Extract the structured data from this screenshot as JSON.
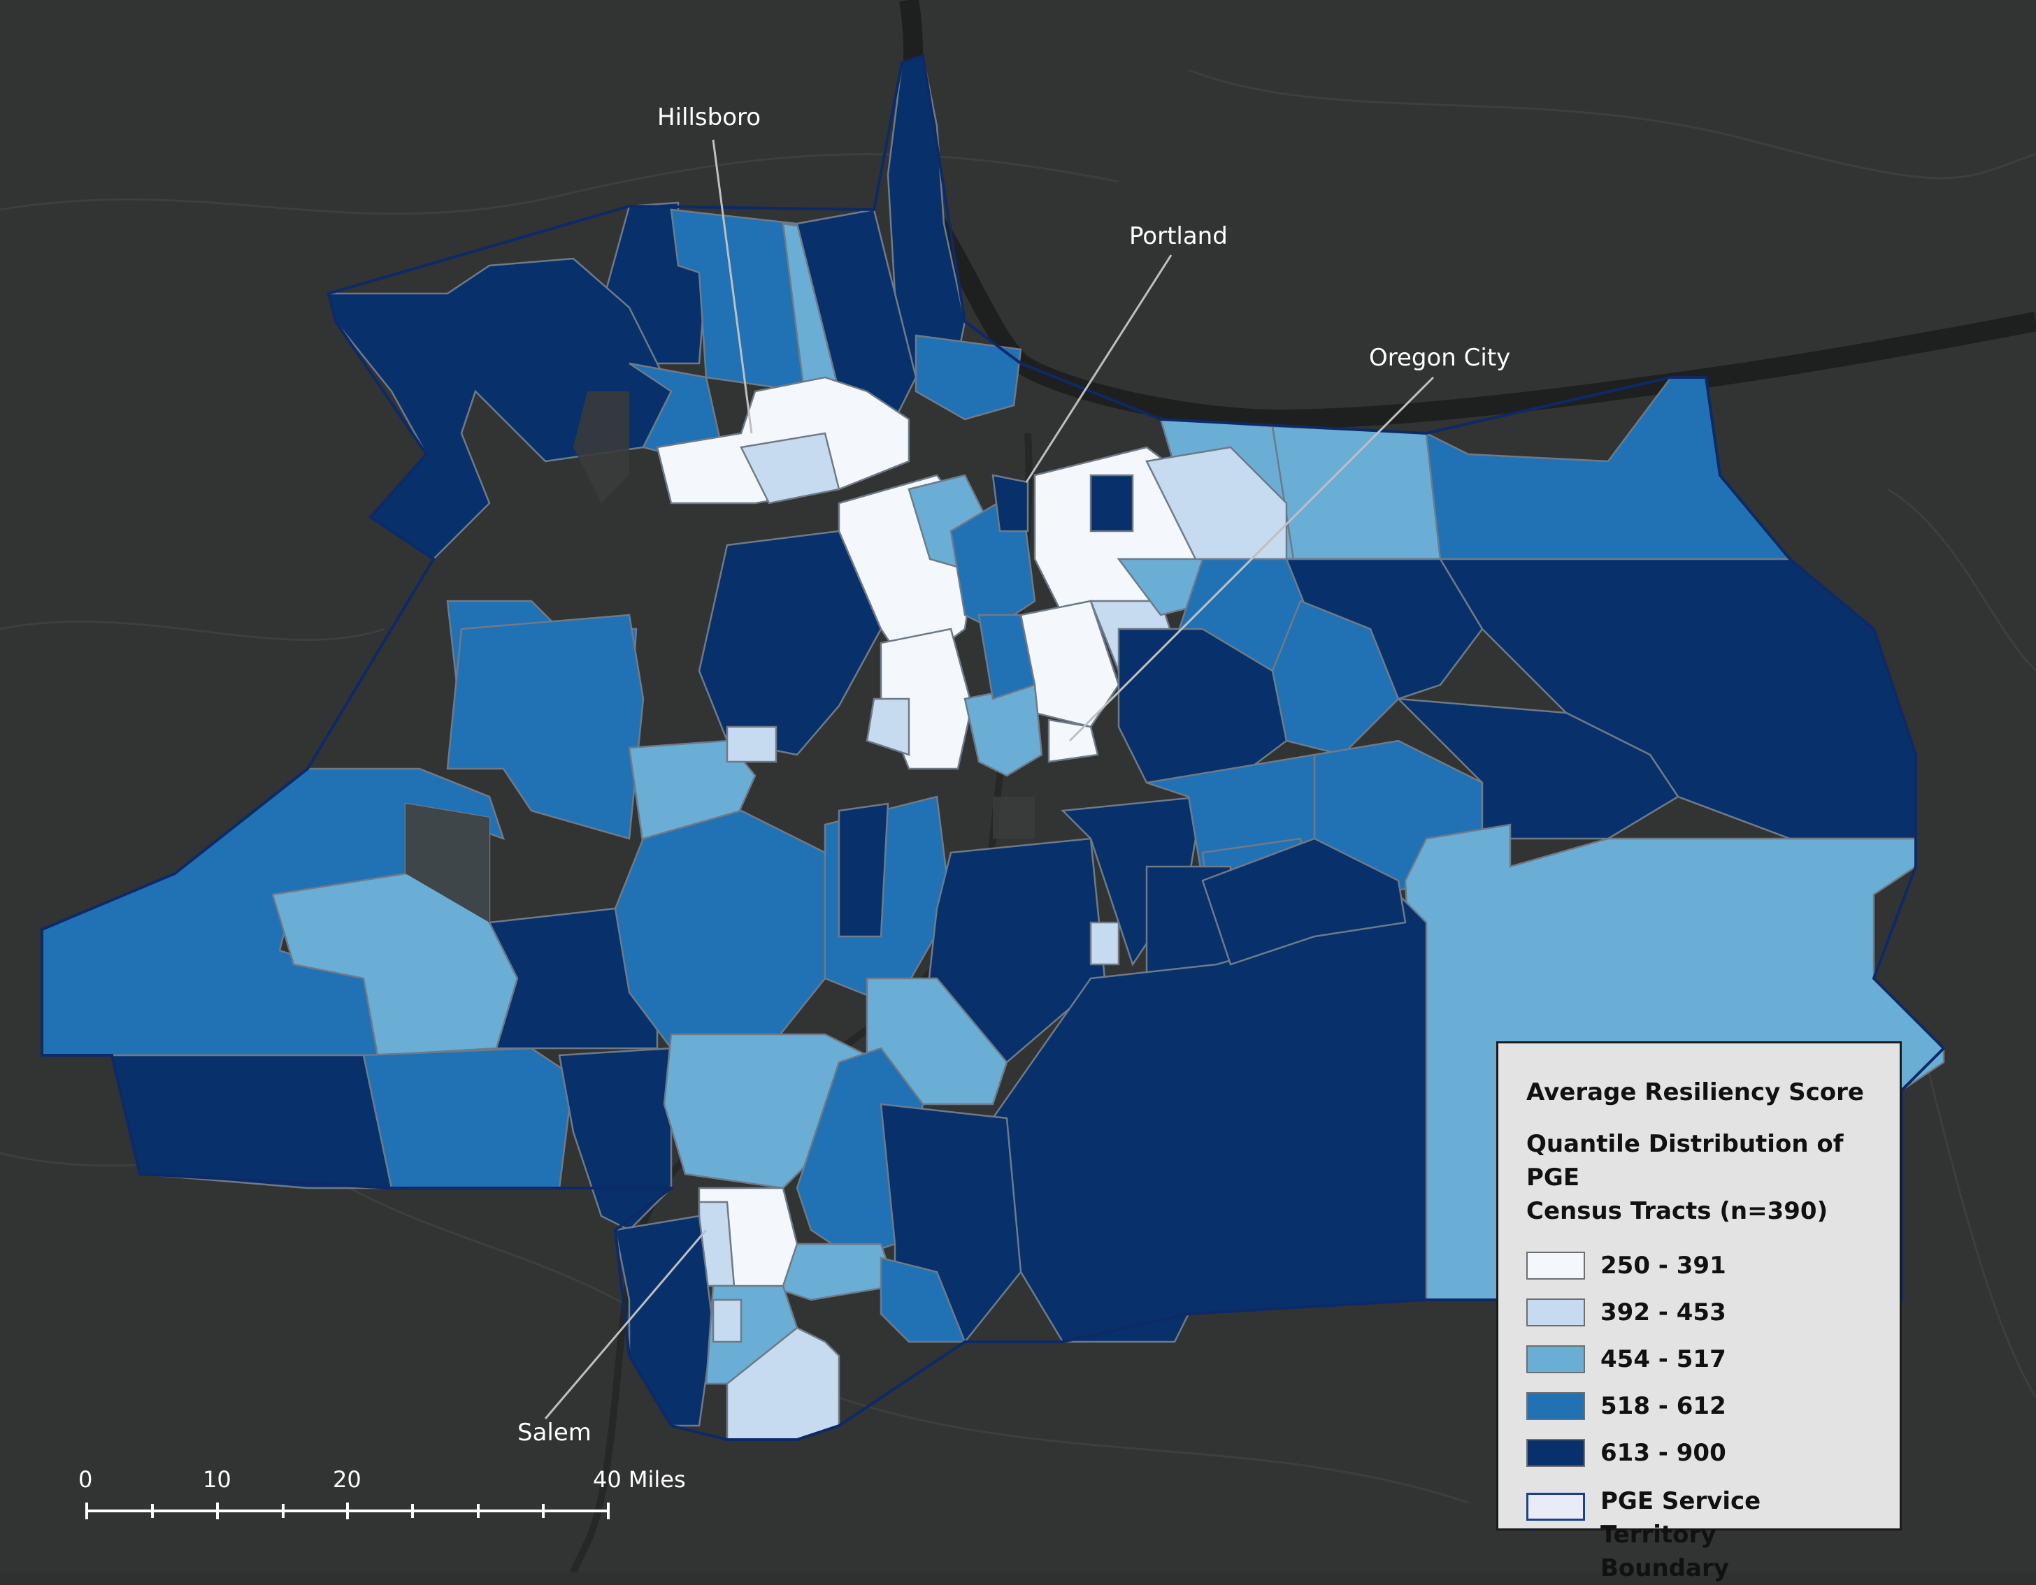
{
  "cities": [
    {
      "name": "Hillsboro"
    },
    {
      "name": "Portland"
    },
    {
      "name": "Oregon City"
    },
    {
      "name": "Salem"
    }
  ],
  "legend": {
    "title": "Average Resiliency Score",
    "subtitle_line1": "Quantile Distribution of PGE",
    "subtitle_line2": "Census Tracts (n=390)",
    "classes": [
      {
        "label": "250 - 391",
        "color": "#f4f8fd"
      },
      {
        "label": "392 - 453",
        "color": "#c6dbef"
      },
      {
        "label": "454 - 517",
        "color": "#6aaed6"
      },
      {
        "label": "518 - 612",
        "color": "#2171b5"
      },
      {
        "label": "613 - 900",
        "color": "#08306b"
      }
    ],
    "boundary_line1": "PGE Service Territory",
    "boundary_line2": "Boundary"
  },
  "scale": {
    "ticks": [
      "0",
      "10",
      "20",
      "40 Miles"
    ]
  }
}
